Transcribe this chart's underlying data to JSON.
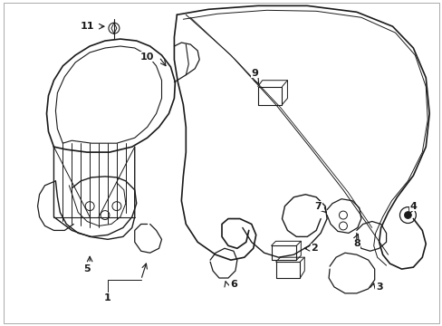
{
  "background_color": "#ffffff",
  "line_color": "#1a1a1a",
  "fig_width": 4.89,
  "fig_height": 3.6,
  "dpi": 100,
  "border_color": "#cccccc"
}
